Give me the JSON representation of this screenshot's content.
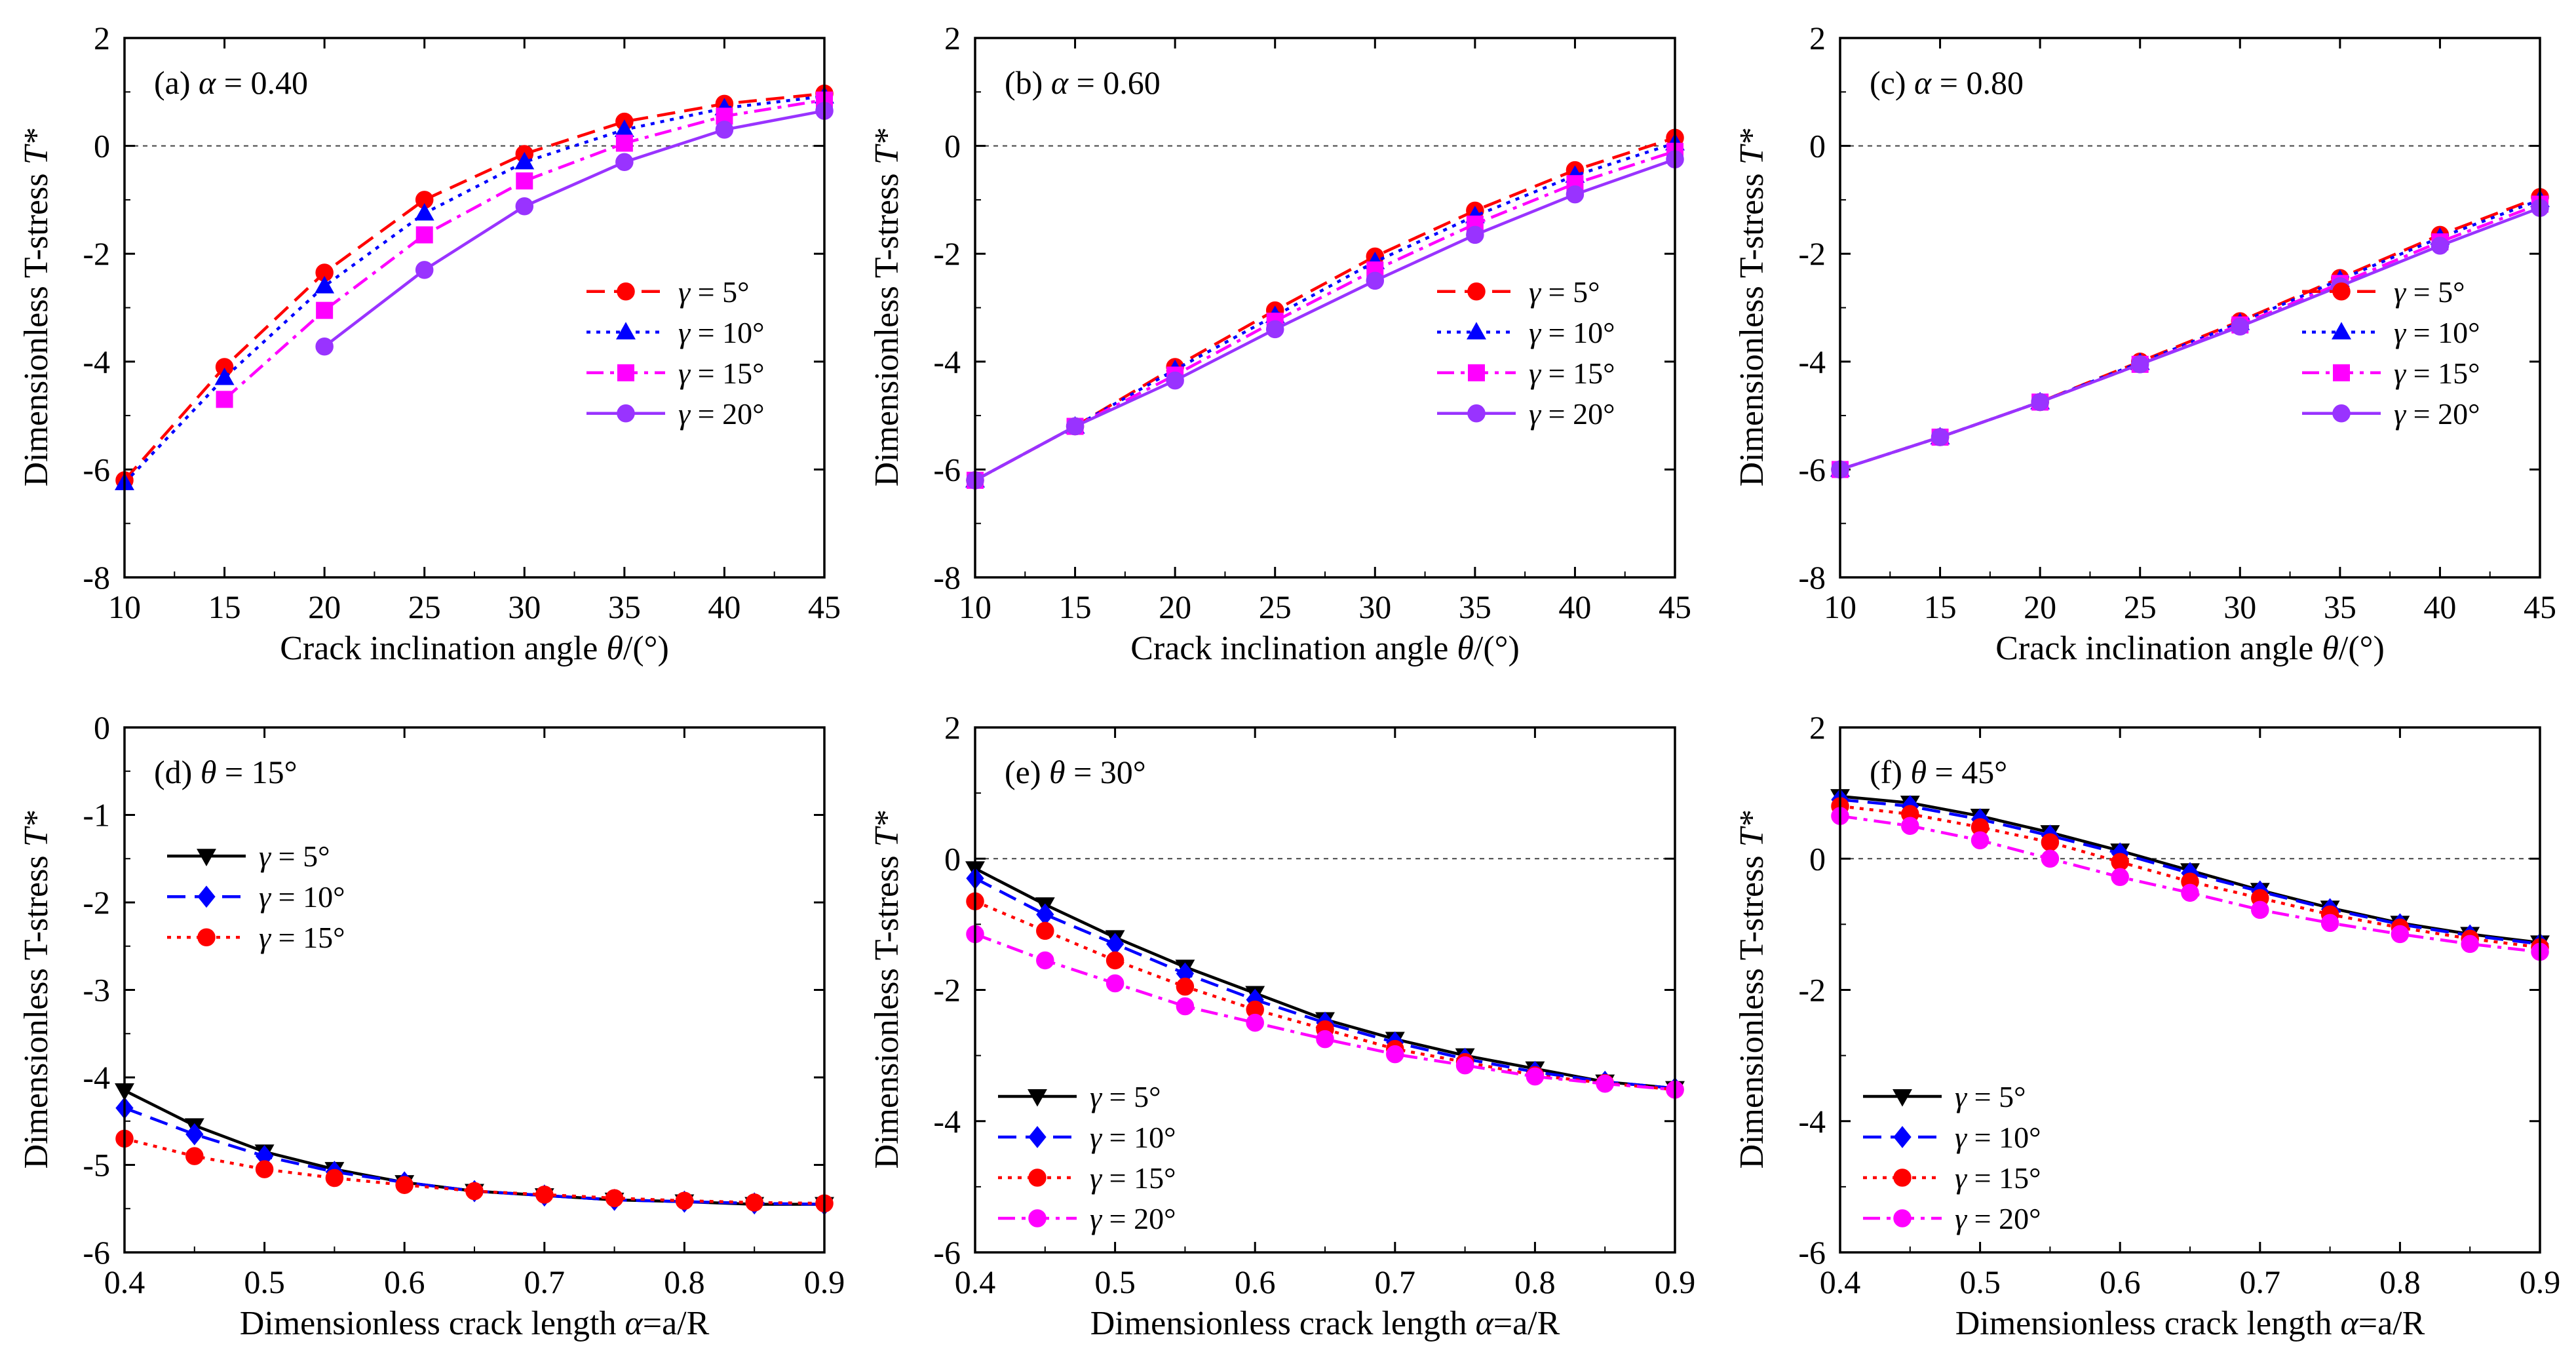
{
  "figure": {
    "legend_marker_hint": "marker glyph names per series",
    "chart_data": [
      {
        "id": "a",
        "type": "line",
        "label": "(a)",
        "param_sym": "α",
        "param_rest": " = 0.40",
        "xlabel_pre": "Crack inclination angle ",
        "xlabel_sym": "θ",
        "xlabel_post": "/(°)",
        "ylabel_pre": "Dimensionless T-stress ",
        "ylabel_sym": "T*",
        "xlim": [
          10,
          45
        ],
        "ylim": [
          -8,
          2
        ],
        "xticks": [
          "10",
          "15",
          "20",
          "25",
          "30",
          "35",
          "40",
          "45"
        ],
        "yticks": [
          "-8",
          "-6",
          "-4",
          "-2",
          "0",
          "2"
        ],
        "zero_line": true,
        "legend_position": "middle-right",
        "series": [
          {
            "name": "5°",
            "color": "#ff0000",
            "dash": "dash",
            "marker": "circle",
            "x": [
              10,
              15,
              20,
              25,
              30,
              35,
              40,
              45
            ],
            "values": [
              -6.2,
              -4.1,
              -2.35,
              -1.0,
              -0.15,
              0.45,
              0.78,
              0.97
            ]
          },
          {
            "name": "10°",
            "color": "#0000ff",
            "dash": "dot",
            "marker": "triangle",
            "x": [
              10,
              15,
              20,
              25,
              30,
              35,
              40,
              45
            ],
            "values": [
              -6.25,
              -4.3,
              -2.6,
              -1.25,
              -0.3,
              0.3,
              0.7,
              0.92
            ]
          },
          {
            "name": "15°",
            "color": "#ff00ff",
            "dash": "dashdot",
            "marker": "square",
            "x": [
              15,
              20,
              25,
              30,
              35,
              40,
              45
            ],
            "values": [
              -4.7,
              -3.05,
              -1.65,
              -0.65,
              0.05,
              0.55,
              0.85
            ]
          },
          {
            "name": "20°",
            "color": "#9933ff",
            "dash": "solid",
            "marker": "circle",
            "x": [
              20,
              25,
              30,
              35,
              40,
              45
            ],
            "values": [
              -3.72,
              -2.3,
              -1.12,
              -0.3,
              0.3,
              0.65
            ]
          }
        ]
      },
      {
        "id": "b",
        "type": "line",
        "label": "(b)",
        "param_sym": "α",
        "param_rest": " = 0.60",
        "xlabel_pre": "Crack inclination angle ",
        "xlabel_sym": "θ",
        "xlabel_post": "/(°)",
        "ylabel_pre": "Dimensionless T-stress ",
        "ylabel_sym": "T*",
        "xlim": [
          10,
          45
        ],
        "ylim": [
          -8,
          2
        ],
        "xticks": [
          "10",
          "15",
          "20",
          "25",
          "30",
          "35",
          "40",
          "45"
        ],
        "yticks": [
          "-8",
          "-6",
          "-4",
          "-2",
          "0",
          "2"
        ],
        "zero_line": true,
        "legend_position": "middle-right",
        "series": [
          {
            "name": "5°",
            "color": "#ff0000",
            "dash": "dash",
            "marker": "circle",
            "x": [
              10,
              15,
              20,
              25,
              30,
              35,
              40,
              45
            ],
            "values": [
              -6.2,
              -5.2,
              -4.1,
              -3.05,
              -2.05,
              -1.2,
              -0.45,
              0.15
            ]
          },
          {
            "name": "10°",
            "color": "#0000ff",
            "dash": "dot",
            "marker": "triangle",
            "x": [
              10,
              15,
              20,
              25,
              30,
              35,
              40,
              45
            ],
            "values": [
              -6.2,
              -5.2,
              -4.15,
              -3.15,
              -2.15,
              -1.3,
              -0.55,
              0.05
            ]
          },
          {
            "name": "15°",
            "color": "#ff00ff",
            "dash": "dashdot",
            "marker": "square",
            "x": [
              10,
              15,
              20,
              25,
              30,
              35,
              40,
              45
            ],
            "values": [
              -6.2,
              -5.2,
              -4.25,
              -3.25,
              -2.3,
              -1.45,
              -0.7,
              -0.1
            ]
          },
          {
            "name": "20°",
            "color": "#9933ff",
            "dash": "solid",
            "marker": "circle",
            "x": [
              10,
              15,
              20,
              25,
              30,
              35,
              40,
              45
            ],
            "values": [
              -6.2,
              -5.2,
              -4.35,
              -3.4,
              -2.5,
              -1.65,
              -0.9,
              -0.25
            ]
          }
        ]
      },
      {
        "id": "c",
        "type": "line",
        "label": "(c)",
        "param_sym": "α",
        "param_rest": " = 0.80",
        "xlabel_pre": "Crack inclination angle ",
        "xlabel_sym": "θ",
        "xlabel_post": "/(°)",
        "ylabel_pre": "Dimensionless T-stress ",
        "ylabel_sym": "T*",
        "xlim": [
          10,
          45
        ],
        "ylim": [
          -8,
          2
        ],
        "xticks": [
          "10",
          "15",
          "20",
          "25",
          "30",
          "35",
          "40",
          "45"
        ],
        "yticks": [
          "-8",
          "-6",
          "-4",
          "-2",
          "0",
          "2"
        ],
        "zero_line": true,
        "legend_position": "middle-right",
        "series": [
          {
            "name": "5°",
            "color": "#ff0000",
            "dash": "dash",
            "marker": "circle",
            "x": [
              10,
              15,
              20,
              25,
              30,
              35,
              40,
              45
            ],
            "values": [
              -6.0,
              -5.4,
              -4.75,
              -4.0,
              -3.25,
              -2.45,
              -1.65,
              -0.95
            ]
          },
          {
            "name": "10°",
            "color": "#0000ff",
            "dash": "dot",
            "marker": "triangle",
            "x": [
              10,
              15,
              20,
              25,
              30,
              35,
              40,
              45
            ],
            "values": [
              -6.0,
              -5.4,
              -4.75,
              -4.02,
              -3.28,
              -2.48,
              -1.7,
              -1.0
            ]
          },
          {
            "name": "15°",
            "color": "#ff00ff",
            "dash": "dashdot",
            "marker": "square",
            "x": [
              10,
              15,
              20,
              25,
              30,
              35,
              40,
              45
            ],
            "values": [
              -6.0,
              -5.4,
              -4.75,
              -4.05,
              -3.32,
              -2.55,
              -1.78,
              -1.08
            ]
          },
          {
            "name": "20°",
            "color": "#9933ff",
            "dash": "solid",
            "marker": "circle",
            "x": [
              10,
              15,
              20,
              25,
              30,
              35,
              40,
              45
            ],
            "values": [
              -6.0,
              -5.4,
              -4.75,
              -4.05,
              -3.35,
              -2.6,
              -1.85,
              -1.15
            ]
          }
        ]
      },
      {
        "id": "d",
        "type": "line",
        "label": "(d)",
        "param_sym": "θ",
        "param_rest": " = 15°",
        "xlabel_pre": "Dimensionless crack length ",
        "xlabel_sym": "α",
        "xlabel_post": "=a/R",
        "ylabel_pre": "Dimensionless T-stress ",
        "ylabel_sym": "T*",
        "xlim": [
          0.4,
          0.9
        ],
        "ylim": [
          -6,
          0
        ],
        "xticks": [
          "0.4",
          "0.5",
          "0.6",
          "0.7",
          "0.8",
          "0.9"
        ],
        "yticks": [
          "-6",
          "-5",
          "-4",
          "-3",
          "-2",
          "-1",
          "0"
        ],
        "zero_line": false,
        "legend_position": "upper-left",
        "series": [
          {
            "name": "5°",
            "color": "#000000",
            "dash": "solid",
            "marker": "triangle-down",
            "x": [
              0.4,
              0.45,
              0.5,
              0.55,
              0.6,
              0.65,
              0.7,
              0.75,
              0.8,
              0.85,
              0.9
            ],
            "values": [
              -4.15,
              -4.55,
              -4.85,
              -5.05,
              -5.2,
              -5.3,
              -5.35,
              -5.4,
              -5.42,
              -5.45,
              -5.45
            ]
          },
          {
            "name": "10°",
            "color": "#0000ff",
            "dash": "dash",
            "marker": "diamond",
            "x": [
              0.4,
              0.45,
              0.5,
              0.55,
              0.6,
              0.65,
              0.7,
              0.75,
              0.8,
              0.85,
              0.9
            ],
            "values": [
              -4.35,
              -4.65,
              -4.9,
              -5.08,
              -5.2,
              -5.3,
              -5.35,
              -5.4,
              -5.42,
              -5.44,
              -5.45
            ]
          },
          {
            "name": "15°",
            "color": "#ff0000",
            "dash": "dot",
            "marker": "circle",
            "x": [
              0.4,
              0.45,
              0.5,
              0.55,
              0.6,
              0.65,
              0.7,
              0.75,
              0.8,
              0.85,
              0.9
            ],
            "values": [
              -4.7,
              -4.9,
              -5.05,
              -5.15,
              -5.23,
              -5.3,
              -5.34,
              -5.38,
              -5.41,
              -5.43,
              -5.44
            ]
          }
        ]
      },
      {
        "id": "e",
        "type": "line",
        "label": "(e)",
        "param_sym": "θ",
        "param_rest": " = 30°",
        "xlabel_pre": "Dimensionless crack length ",
        "xlabel_sym": "α",
        "xlabel_post": "=a/R",
        "ylabel_pre": "Dimensionless T-stress ",
        "ylabel_sym": "T*",
        "xlim": [
          0.4,
          0.9
        ],
        "ylim": [
          -6,
          2
        ],
        "xticks": [
          "0.4",
          "0.5",
          "0.6",
          "0.7",
          "0.8",
          "0.9"
        ],
        "yticks": [
          "-6",
          "-4",
          "-2",
          "0",
          "2"
        ],
        "zero_line": true,
        "legend_position": "lower-left",
        "series": [
          {
            "name": "5°",
            "color": "#000000",
            "dash": "solid",
            "marker": "triangle-down",
            "x": [
              0.4,
              0.45,
              0.5,
              0.55,
              0.6,
              0.65,
              0.7,
              0.75,
              0.8,
              0.85,
              0.9
            ],
            "values": [
              -0.15,
              -0.7,
              -1.2,
              -1.65,
              -2.05,
              -2.45,
              -2.75,
              -3.0,
              -3.2,
              -3.4,
              -3.5
            ]
          },
          {
            "name": "10°",
            "color": "#0000ff",
            "dash": "dash",
            "marker": "diamond",
            "x": [
              0.4,
              0.45,
              0.5,
              0.55,
              0.6,
              0.65,
              0.7,
              0.75,
              0.8,
              0.85,
              0.9
            ],
            "values": [
              -0.3,
              -0.85,
              -1.3,
              -1.75,
              -2.15,
              -2.5,
              -2.8,
              -3.05,
              -3.25,
              -3.4,
              -3.5
            ]
          },
          {
            "name": "15°",
            "color": "#ff0000",
            "dash": "dot",
            "marker": "circle",
            "x": [
              0.4,
              0.45,
              0.5,
              0.55,
              0.6,
              0.65,
              0.7,
              0.75,
              0.8,
              0.85,
              0.9
            ],
            "values": [
              -0.65,
              -1.1,
              -1.55,
              -1.95,
              -2.3,
              -2.6,
              -2.9,
              -3.1,
              -3.3,
              -3.42,
              -3.52
            ]
          },
          {
            "name": "20°",
            "color": "#ff00ff",
            "dash": "dashdot",
            "marker": "circle",
            "x": [
              0.4,
              0.45,
              0.5,
              0.55,
              0.6,
              0.65,
              0.7,
              0.75,
              0.8,
              0.85,
              0.9
            ],
            "values": [
              -1.15,
              -1.55,
              -1.9,
              -2.25,
              -2.5,
              -2.75,
              -2.98,
              -3.15,
              -3.32,
              -3.43,
              -3.52
            ]
          }
        ]
      },
      {
        "id": "f",
        "type": "line",
        "label": "(f)",
        "param_sym": "θ",
        "param_rest": " = 45°",
        "xlabel_pre": "Dimensionless crack length ",
        "xlabel_sym": "α",
        "xlabel_post": "=a/R",
        "ylabel_pre": "Dimensionless T-stress ",
        "ylabel_sym": "T*",
        "xlim": [
          0.4,
          0.9
        ],
        "ylim": [
          -6,
          2
        ],
        "xticks": [
          "0.4",
          "0.5",
          "0.6",
          "0.7",
          "0.8",
          "0.9"
        ],
        "yticks": [
          "-6",
          "-4",
          "-2",
          "0",
          "2"
        ],
        "zero_line": true,
        "legend_position": "lower-left",
        "series": [
          {
            "name": "5°",
            "color": "#000000",
            "dash": "solid",
            "marker": "triangle-down",
            "x": [
              0.4,
              0.45,
              0.5,
              0.55,
              0.6,
              0.65,
              0.7,
              0.75,
              0.8,
              0.85,
              0.9
            ],
            "values": [
              0.95,
              0.85,
              0.65,
              0.4,
              0.12,
              -0.18,
              -0.48,
              -0.75,
              -0.98,
              -1.15,
              -1.28
            ]
          },
          {
            "name": "10°",
            "color": "#0000ff",
            "dash": "dash",
            "marker": "diamond",
            "x": [
              0.4,
              0.45,
              0.5,
              0.55,
              0.6,
              0.65,
              0.7,
              0.75,
              0.8,
              0.85,
              0.9
            ],
            "values": [
              0.9,
              0.8,
              0.6,
              0.35,
              0.08,
              -0.22,
              -0.5,
              -0.77,
              -1.0,
              -1.17,
              -1.3
            ]
          },
          {
            "name": "15°",
            "color": "#ff0000",
            "dash": "dot",
            "marker": "circle",
            "x": [
              0.4,
              0.45,
              0.5,
              0.55,
              0.6,
              0.65,
              0.7,
              0.75,
              0.8,
              0.85,
              0.9
            ],
            "values": [
              0.8,
              0.68,
              0.48,
              0.25,
              -0.05,
              -0.35,
              -0.6,
              -0.85,
              -1.05,
              -1.22,
              -1.35
            ]
          },
          {
            "name": "20°",
            "color": "#ff00ff",
            "dash": "dashdot",
            "marker": "circle",
            "x": [
              0.4,
              0.45,
              0.5,
              0.55,
              0.6,
              0.65,
              0.7,
              0.75,
              0.8,
              0.85,
              0.9
            ],
            "values": [
              0.65,
              0.5,
              0.28,
              0.0,
              -0.28,
              -0.52,
              -0.78,
              -0.98,
              -1.15,
              -1.3,
              -1.42
            ]
          }
        ]
      }
    ]
  }
}
